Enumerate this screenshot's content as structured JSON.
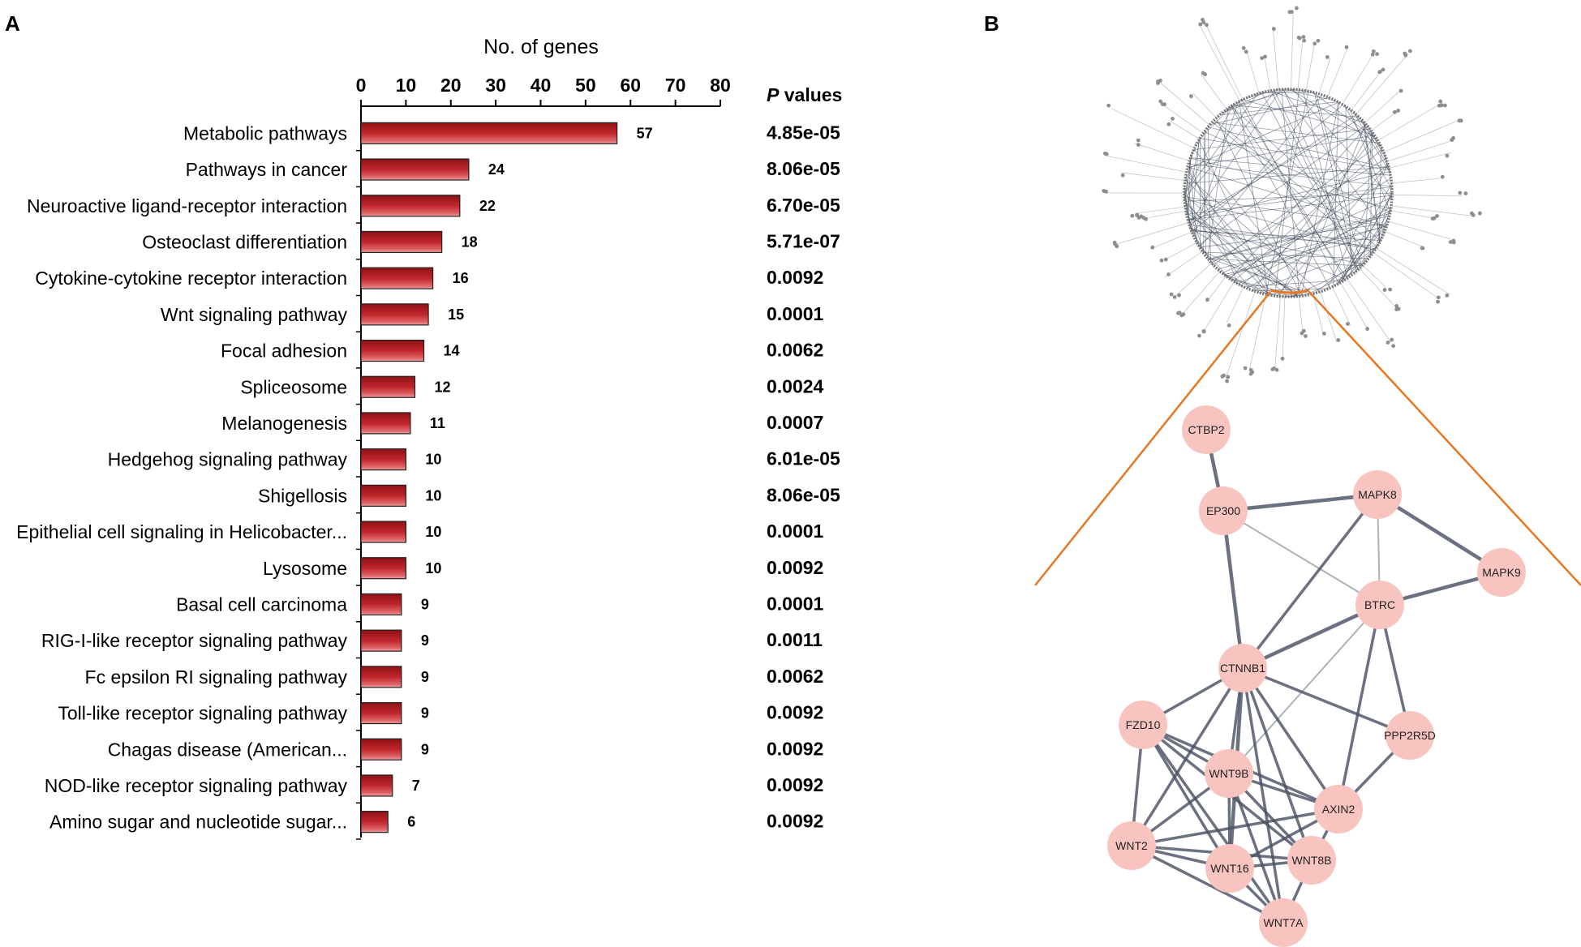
{
  "panels": {
    "a": "A",
    "b": "B"
  },
  "chart_data": {
    "type": "bar",
    "orientation": "horizontal",
    "xlabel": "No. of genes",
    "xlim": [
      0,
      80
    ],
    "xticks": [
      0,
      10,
      20,
      30,
      40,
      50,
      60,
      70,
      80
    ],
    "pvalue_header_prefix": "P",
    "pvalue_header_suffix": " values",
    "bar_color": "#c0262b",
    "categories": [
      "Metabolic pathways",
      "Pathways in cancer",
      "Neuroactive ligand-receptor interaction",
      "Osteoclast differentiation",
      "Cytokine-cytokine receptor interaction",
      "Wnt signaling pathway",
      "Focal adhesion",
      "Spliceosome",
      "Melanogenesis",
      "Hedgehog signaling pathway",
      "Shigellosis",
      "Epithelial cell signaling in Helicobacter...",
      "Lysosome",
      "Basal cell carcinoma",
      "RIG-I-like receptor signaling pathway",
      "Fc epsilon RI signaling pathway",
      "Toll-like receptor signaling pathway",
      "Chagas disease (American...",
      "NOD-like receptor signaling pathway",
      "Amino sugar and nucleotide sugar..."
    ],
    "values": [
      57,
      24,
      22,
      18,
      16,
      15,
      14,
      12,
      11,
      10,
      10,
      10,
      10,
      9,
      9,
      9,
      9,
      9,
      7,
      6
    ],
    "p_values": [
      "4.85e-05",
      "8.06e-05",
      "6.70e-05",
      "5.71e-07",
      "0.0092",
      "0.0001",
      "0.0062",
      "0.0024",
      "0.0007",
      "6.01e-05",
      "8.06e-05",
      "0.0001",
      "0.0092",
      "0.0001",
      "0.0011",
      "0.0062",
      "0.0092",
      "0.0092",
      "0.0092",
      "0.0092"
    ]
  },
  "network": {
    "node_color": "#f8c4c0",
    "edge_color": "#4a5264",
    "zoom_line_color": "#e87722",
    "nodes": [
      "CTBP2",
      "EP300",
      "MAPK8",
      "MAPK9",
      "BTRC",
      "CTNNB1",
      "FZD10",
      "PPP2R5D",
      "WNT9B",
      "AXIN2",
      "WNT2",
      "WNT16",
      "WNT8B",
      "WNT7A"
    ],
    "edges": [
      [
        "CTBP2",
        "EP300"
      ],
      [
        "EP300",
        "MAPK8"
      ],
      [
        "EP300",
        "CTNNB1"
      ],
      [
        "EP300",
        "BTRC"
      ],
      [
        "MAPK8",
        "MAPK9"
      ],
      [
        "MAPK8",
        "BTRC"
      ],
      [
        "MAPK8",
        "CTNNB1"
      ],
      [
        "MAPK9",
        "BTRC"
      ],
      [
        "BTRC",
        "CTNNB1"
      ],
      [
        "BTRC",
        "PPP2R5D"
      ],
      [
        "BTRC",
        "AXIN2"
      ],
      [
        "BTRC",
        "WNT9B"
      ],
      [
        "CTNNB1",
        "FZD10"
      ],
      [
        "CTNNB1",
        "PPP2R5D"
      ],
      [
        "CTNNB1",
        "WNT9B"
      ],
      [
        "CTNNB1",
        "AXIN2"
      ],
      [
        "CTNNB1",
        "WNT2"
      ],
      [
        "CTNNB1",
        "WNT16"
      ],
      [
        "CTNNB1",
        "WNT8B"
      ],
      [
        "CTNNB1",
        "WNT7A"
      ],
      [
        "FZD10",
        "WNT9B"
      ],
      [
        "FZD10",
        "WNT2"
      ],
      [
        "FZD10",
        "WNT16"
      ],
      [
        "FZD10",
        "WNT8B"
      ],
      [
        "FZD10",
        "WNT7A"
      ],
      [
        "FZD10",
        "AXIN2"
      ],
      [
        "PPP2R5D",
        "AXIN2"
      ],
      [
        "WNT9B",
        "WNT2"
      ],
      [
        "WNT9B",
        "WNT16"
      ],
      [
        "WNT9B",
        "WNT8B"
      ],
      [
        "WNT9B",
        "WNT7A"
      ],
      [
        "WNT9B",
        "AXIN2"
      ],
      [
        "AXIN2",
        "WNT2"
      ],
      [
        "AXIN2",
        "WNT16"
      ],
      [
        "AXIN2",
        "WNT8B"
      ],
      [
        "WNT2",
        "WNT16"
      ],
      [
        "WNT2",
        "WNT8B"
      ],
      [
        "WNT2",
        "WNT7A"
      ],
      [
        "WNT16",
        "WNT8B"
      ],
      [
        "WNT16",
        "WNT7A"
      ],
      [
        "WNT8B",
        "WNT7A"
      ]
    ]
  }
}
